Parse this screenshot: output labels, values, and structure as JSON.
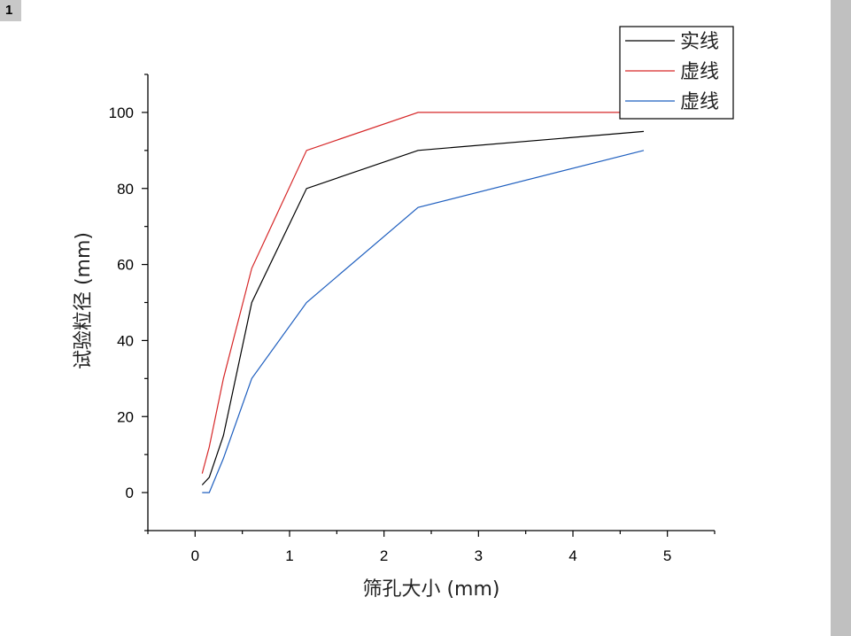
{
  "page_tag": "1",
  "chart_data": {
    "type": "line",
    "xlabel": "筛孔大小 (mm)",
    "ylabel": "试验粒径 (mm)",
    "xlim": [
      -0.5,
      5.5
    ],
    "ylim": [
      -10,
      110
    ],
    "xticks": [
      0,
      1,
      2,
      3,
      4,
      5
    ],
    "yticks": [
      0,
      20,
      40,
      60,
      80,
      100
    ],
    "grid": false,
    "legend_position": "top-right",
    "series": [
      {
        "name": "实线",
        "color": "#000000",
        "x": [
          0.075,
          0.15,
          0.3,
          0.6,
          1.18,
          2.36,
          4.75
        ],
        "y": [
          2,
          4,
          15,
          50,
          80,
          90,
          95
        ]
      },
      {
        "name": "虚线",
        "color": "#d62728",
        "x": [
          0.075,
          0.15,
          0.3,
          0.6,
          1.18,
          2.36,
          4.75
        ],
        "y": [
          5,
          12,
          30,
          59,
          90,
          100,
          100
        ]
      },
      {
        "name": "虚线",
        "color": "#1f5fbf",
        "x": [
          0.075,
          0.15,
          0.3,
          0.6,
          1.18,
          2.36,
          4.75
        ],
        "y": [
          0,
          0,
          9,
          30,
          50,
          75,
          90
        ]
      }
    ]
  }
}
